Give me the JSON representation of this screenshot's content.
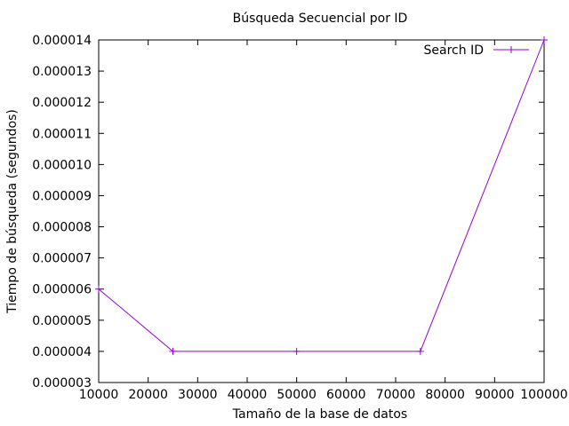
{
  "chart_data": {
    "type": "line",
    "title": "Búsqueda Secuencial por ID",
    "xlabel": "Tamaño de la base de datos",
    "ylabel": "Tiempo de búsqueda (segundos)",
    "xlim": [
      10000,
      100000
    ],
    "ylim": [
      3e-06,
      1.4e-05
    ],
    "xticks": [
      10000,
      20000,
      30000,
      40000,
      50000,
      60000,
      70000,
      80000,
      90000,
      100000
    ],
    "xtick_labels": [
      "10000",
      "20000",
      "30000",
      "40000",
      "50000",
      "60000",
      "70000",
      "80000",
      "90000",
      "100000"
    ],
    "yticks": [
      3e-06,
      4e-06,
      5e-06,
      6e-06,
      7e-06,
      8e-06,
      9e-06,
      1e-05,
      1.1e-05,
      1.2e-05,
      1.3e-05,
      1.4e-05
    ],
    "ytick_labels": [
      "0.000003",
      "0.000004",
      "0.000005",
      "0.000006",
      "0.000007",
      "0.000008",
      "0.000009",
      "0.000010",
      "0.000011",
      "0.000012",
      "0.000013",
      "0.000014"
    ],
    "grid": false,
    "legend_position": "top-right",
    "series": [
      {
        "name": "Search ID",
        "color": "#9400d3",
        "marker": "plus",
        "x": [
          10000,
          25000,
          50000,
          75000,
          100000
        ],
        "y": [
          6e-06,
          4e-06,
          4e-06,
          4e-06,
          1.4e-05
        ]
      }
    ]
  }
}
